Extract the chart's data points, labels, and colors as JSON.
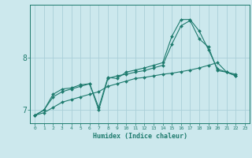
{
  "background_color": "#cce8ed",
  "grid_color": "#aacfd8",
  "line_color": "#1e7b6e",
  "xlabel": "Humidex (Indice chaleur)",
  "xlim": [
    -0.5,
    23.5
  ],
  "ylim": [
    6.75,
    9.0
  ],
  "yticks": [
    7,
    8
  ],
  "xticks": [
    0,
    1,
    2,
    3,
    4,
    5,
    6,
    7,
    8,
    9,
    10,
    11,
    12,
    13,
    14,
    15,
    16,
    17,
    18,
    19,
    20,
    21,
    22,
    23
  ],
  "series": [
    {
      "x": [
        0,
        1,
        2,
        3,
        4,
        5,
        6,
        7,
        8,
        9,
        10,
        11,
        12,
        13,
        14,
        15,
        16,
        17,
        18,
        19,
        20,
        21,
        22
      ],
      "y": [
        6.9,
        6.95,
        7.05,
        7.15,
        7.2,
        7.25,
        7.3,
        7.35,
        7.45,
        7.5,
        7.55,
        7.6,
        7.62,
        7.65,
        7.68,
        7.7,
        7.73,
        7.76,
        7.8,
        7.85,
        7.9,
        7.72,
        7.68
      ]
    },
    {
      "x": [
        0,
        1,
        2,
        3,
        4,
        5,
        6,
        7,
        8,
        9,
        10,
        11,
        12,
        13,
        14,
        15,
        16,
        17,
        18,
        19,
        20,
        21,
        22
      ],
      "y": [
        6.9,
        7.0,
        7.25,
        7.35,
        7.4,
        7.45,
        7.5,
        7.0,
        7.6,
        7.65,
        7.68,
        7.72,
        7.75,
        7.8,
        7.85,
        8.25,
        8.6,
        8.7,
        8.35,
        8.2,
        7.75,
        7.72,
        7.65
      ]
    },
    {
      "x": [
        0,
        1,
        2,
        3,
        4,
        5,
        6,
        7,
        8,
        9,
        10,
        11,
        12,
        13,
        14,
        15,
        16,
        17,
        18,
        19,
        20,
        21,
        22
      ],
      "y": [
        6.9,
        7.0,
        7.3,
        7.4,
        7.42,
        7.48,
        7.5,
        7.05,
        7.62,
        7.6,
        7.72,
        7.76,
        7.8,
        7.85,
        7.9,
        8.4,
        8.72,
        8.72,
        8.5,
        8.15,
        7.78,
        7.72,
        7.65
      ]
    }
  ]
}
